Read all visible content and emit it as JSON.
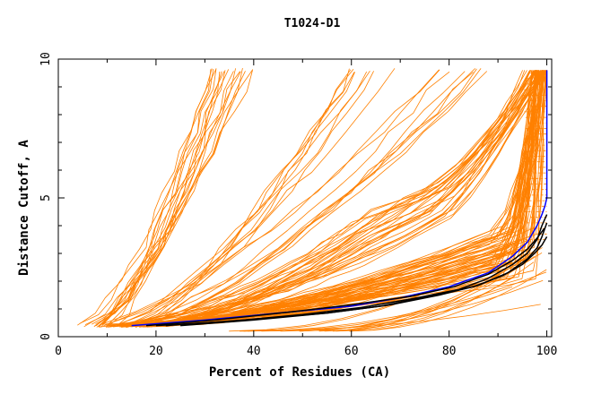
{
  "chart_data": {
    "type": "line",
    "title": "T1024-D1",
    "xlabel": "Percent of Residues (CA)",
    "ylabel": "Distance Cutoff, A",
    "xlim": [
      0,
      101
    ],
    "ylim": [
      0,
      10
    ],
    "x_ticks": [
      0,
      20,
      40,
      60,
      80,
      100
    ],
    "x_tick_labels": [
      "0",
      "20",
      "40",
      "60",
      "80",
      "100"
    ],
    "y_ticks": [
      0,
      5,
      10
    ],
    "y_tick_labels": [
      "0",
      "5",
      "10"
    ],
    "grid": false,
    "legend": "none",
    "colors": {
      "background_models": "#ff8000",
      "highlight_dark": "#000000",
      "highlight_blue": "#0000ff"
    },
    "series": [
      {
        "color": "#0000ff",
        "x": [
          15,
          30,
          45,
          60,
          70,
          80,
          88,
          93,
          96,
          98,
          99,
          99.6,
          100,
          100
        ],
        "y": [
          0.4,
          0.6,
          0.85,
          1.1,
          1.4,
          1.8,
          2.3,
          2.9,
          3.4,
          4.0,
          4.4,
          4.7,
          5.0,
          9.6
        ]
      },
      {
        "color": "#000000",
        "x": [
          20,
          35,
          50,
          62,
          72,
          82,
          88,
          93,
          96,
          98,
          99,
          100
        ],
        "y": [
          0.4,
          0.55,
          0.8,
          1.05,
          1.35,
          1.7,
          2.1,
          2.6,
          3.0,
          3.5,
          4.0,
          4.4
        ]
      },
      {
        "color": "#000000",
        "x": [
          22,
          38,
          55,
          68,
          78,
          86,
          92,
          96,
          98,
          99,
          100
        ],
        "y": [
          0.4,
          0.6,
          0.85,
          1.15,
          1.5,
          1.85,
          2.3,
          2.8,
          3.2,
          3.6,
          4.1
        ]
      },
      {
        "color": "#000000",
        "x": [
          18,
          32,
          48,
          60,
          72,
          81,
          88,
          93,
          96,
          98,
          99.5
        ],
        "y": [
          0.4,
          0.6,
          0.9,
          1.15,
          1.45,
          1.8,
          2.25,
          2.75,
          3.15,
          3.55,
          3.9
        ]
      },
      {
        "color": "#000000",
        "x": [
          25,
          40,
          55,
          66,
          76,
          85,
          91,
          95,
          97.5,
          99,
          100
        ],
        "y": [
          0.4,
          0.6,
          0.85,
          1.1,
          1.45,
          1.8,
          2.2,
          2.6,
          3.0,
          3.3,
          3.6
        ]
      }
    ],
    "background_series": {
      "color": "#ff8000",
      "count": 140,
      "description_groups": [
        {
          "start_x": [
            4,
            12
          ],
          "end_x": [
            30,
            40
          ],
          "end_y": 9.6
        },
        {
          "start_x": [
            8,
            18
          ],
          "end_x": [
            60,
            90
          ],
          "end_y": 9.6
        },
        {
          "start_x": [
            8,
            20
          ],
          "knee_x": [
            60,
            75
          ],
          "knee_y": [
            3.5,
            5
          ],
          "end_x": [
            95,
            100
          ],
          "end_y": 9.6
        },
        {
          "start_x": [
            10,
            20
          ],
          "knee_x": [
            88,
            98
          ],
          "knee_y": [
            2,
            4
          ],
          "end_x": [
            97,
            100
          ],
          "end_y": 9.6
        },
        {
          "start_x": [
            30,
            60
          ],
          "end_x": [
            92,
            100
          ],
          "end_y": 2.5
        }
      ]
    }
  }
}
